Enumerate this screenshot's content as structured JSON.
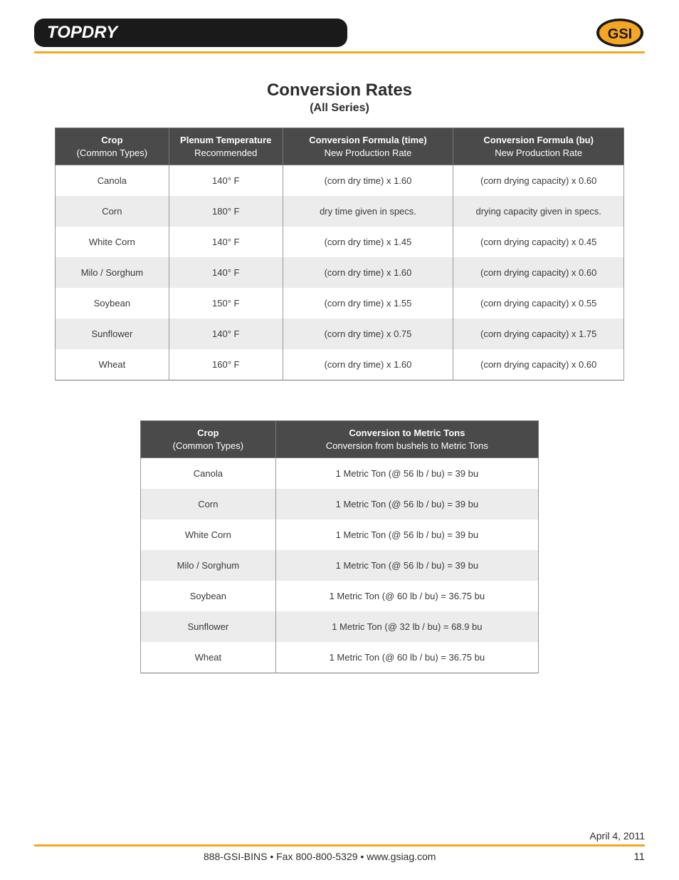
{
  "header": {
    "brand": "TOPDRY",
    "logo_text": "GSI",
    "logo_colors": {
      "ring": "#1a1a1a",
      "fill": "#f5a623",
      "text": "#1a1a1a"
    }
  },
  "title": {
    "main": "Conversion Rates",
    "sub": "(All Series)"
  },
  "table1": {
    "columns": [
      {
        "bold": "Crop",
        "plain": "(Common Types)"
      },
      {
        "bold": "Plenum Temperature",
        "plain": "Recommended"
      },
      {
        "bold": "Conversion Formula (time)",
        "plain": "New Production Rate"
      },
      {
        "bold": "Conversion Formula (bu)",
        "plain": "New Production Rate"
      }
    ],
    "rows": [
      [
        "Canola",
        "140° F",
        "(corn dry time) x 1.60",
        "(corn drying capacity) x 0.60"
      ],
      [
        "Corn",
        "180° F",
        "dry time given in specs.",
        "drying capacity given in specs."
      ],
      [
        "White Corn",
        "140° F",
        "(corn dry time) x 1.45",
        "(corn drying capacity) x 0.45"
      ],
      [
        "Milo / Sorghum",
        "140° F",
        "(corn dry time) x 1.60",
        "(corn drying capacity) x 0.60"
      ],
      [
        "Soybean",
        "150° F",
        "(corn dry time) x 1.55",
        "(corn drying capacity) x 0.55"
      ],
      [
        "Sunflower",
        "140° F",
        "(corn dry time) x 0.75",
        "(corn drying capacity) x 1.75"
      ],
      [
        "Wheat",
        "160° F",
        "(corn dry time) x 1.60",
        "(corn drying capacity) x 0.60"
      ]
    ]
  },
  "table2": {
    "columns": [
      {
        "bold": "Crop",
        "plain": "(Common Types)"
      },
      {
        "bold": "Conversion to Metric Tons",
        "plain": "Conversion from bushels to Metric Tons"
      }
    ],
    "rows": [
      [
        "Canola",
        "1 Metric Ton (@ 56 lb / bu) = 39 bu"
      ],
      [
        "Corn",
        "1 Metric Ton (@ 56 lb / bu) = 39 bu"
      ],
      [
        "White Corn",
        "1 Metric Ton (@ 56 lb / bu) = 39 bu"
      ],
      [
        "Milo / Sorghum",
        "1 Metric Ton (@ 56 lb / bu) = 39 bu"
      ],
      [
        "Soybean",
        "1 Metric Ton (@ 60 lb / bu) = 36.75 bu"
      ],
      [
        "Sunflower",
        "1 Metric Ton (@ 32 lb / bu) = 68.9 bu"
      ],
      [
        "Wheat",
        "1 Metric Ton (@ 60 lb / bu) = 36.75 bu"
      ]
    ]
  },
  "footer": {
    "date": "April 4, 2011",
    "contact": "888-GSI-BINS • Fax 800-800-5329 • www.gsiag.com",
    "page": "11"
  },
  "style": {
    "accent": "#f5a623",
    "header_bg": "#4a4a4a",
    "alt_row_bg": "#ececec",
    "text_color": "#3a3a3a"
  }
}
